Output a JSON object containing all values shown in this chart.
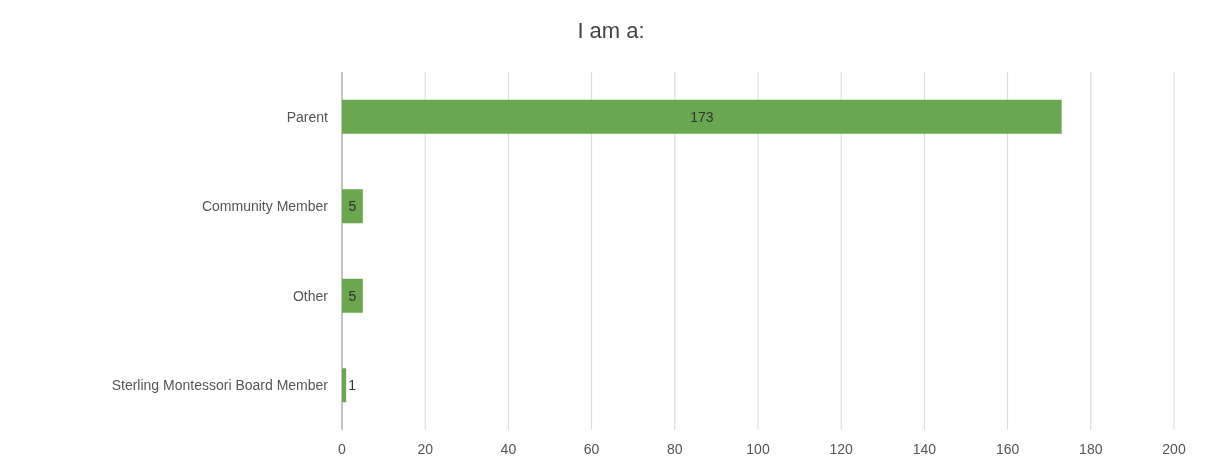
{
  "chart_data": {
    "type": "bar",
    "title": "I am a:",
    "orientation": "horizontal",
    "categories": [
      "Parent",
      "Community Member",
      "Other",
      "Sterling Montessori Board Member"
    ],
    "values": [
      173,
      5,
      5,
      1
    ],
    "color": "#6aa84f",
    "xlim": [
      0,
      200
    ],
    "xticks": [
      0,
      20,
      40,
      60,
      80,
      100,
      120,
      140,
      160,
      180,
      200
    ],
    "grid": "x",
    "data_labels": true
  }
}
